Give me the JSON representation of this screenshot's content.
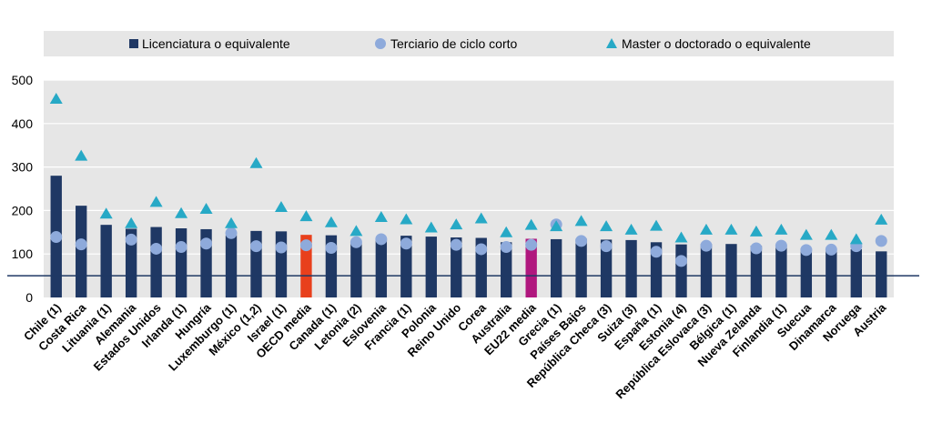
{
  "chart_data": {
    "type": "bar",
    "categories": [
      "Chile (1)",
      "Costa Rica",
      "Lituania (1)",
      "Alemania",
      "Estados Unidos",
      "Irlanda (1)",
      "Hungría",
      "Luxemburgo (1)",
      "México (1,2)",
      "Israel (1)",
      "OECD media",
      "Canada (1)",
      "Letonia (2)",
      "Eslovenia",
      "Francia (1)",
      "Polonia",
      "Reino Unido",
      "Corea",
      "Australia",
      "EU22 media",
      "Grecia (1)",
      "Países Bajos",
      "República Checa (3)",
      "Suiza (3)",
      "España (1)",
      "Estonia (4)",
      "República Eslovaca (3)",
      "Bélgica (1)",
      "Nueva Zelanda",
      "Finlandia (1)",
      "Suecua",
      "Dinamarca",
      "Noruega",
      "Austria"
    ],
    "series": [
      {
        "name": "Licenciatura o equivalente",
        "marker": "bar",
        "values": [
          280,
          211,
          167,
          158,
          162,
          159,
          157,
          143,
          153,
          152,
          144,
          143,
          126,
          133,
          142,
          140,
          138,
          137,
          127,
          135,
          134,
          135,
          133,
          132,
          127,
          122,
          123,
          123,
          119,
          118,
          113,
          112,
          111,
          106
        ]
      },
      {
        "name": "Terciario de ciclo corto",
        "marker": "circle",
        "values": [
          139,
          122,
          null,
          133,
          112,
          116,
          124,
          148,
          118,
          115,
          120,
          114,
          127,
          134,
          124,
          null,
          121,
          111,
          116,
          121,
          168,
          130,
          118,
          null,
          105,
          84,
          119,
          null,
          113,
          119,
          109,
          110,
          118,
          130
        ]
      },
      {
        "name": "Master o doctorado o equivalente",
        "marker": "triangle",
        "values": [
          456,
          325,
          192,
          170,
          219,
          193,
          203,
          170,
          308,
          207,
          186,
          172,
          152,
          184,
          179,
          160,
          167,
          181,
          149,
          166,
          163,
          175,
          163,
          155,
          164,
          137,
          155,
          155,
          151,
          155,
          143,
          143,
          133,
          178
        ]
      }
    ],
    "ylim": [
      0,
      500
    ],
    "yticks": [
      "0",
      "100",
      "200",
      "300",
      "400",
      "500"
    ],
    "reference_line": 50,
    "grid": true,
    "legend_position": "top",
    "colors": {
      "bar": "#1f3864",
      "bar_oecd": "#e8401c",
      "bar_eu22": "#b0177e",
      "circle": "#8eaadb",
      "triangle": "#27a9c6",
      "reference_line": "#1f3864",
      "plot_bg": "#e6e6e6",
      "grid": "#ffffff"
    }
  }
}
